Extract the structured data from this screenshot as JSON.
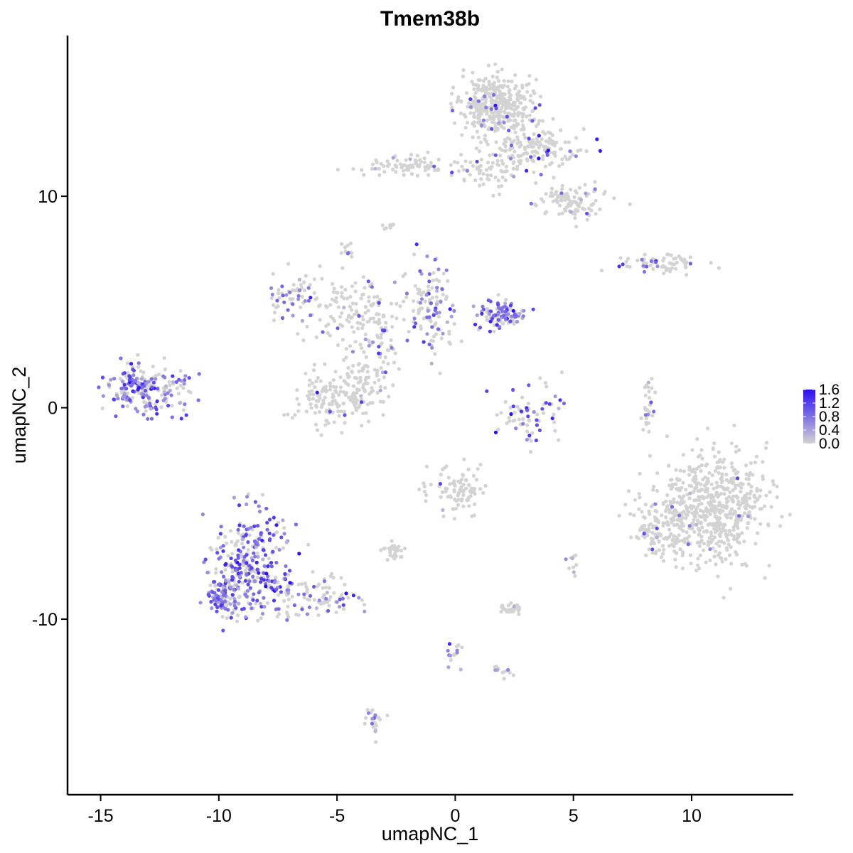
{
  "chart_data": {
    "type": "scatter",
    "title": "Tmem38b",
    "xlabel": "umapNC_1",
    "ylabel": "umapNC_2",
    "xlim": [
      -16.4,
      14.3
    ],
    "ylim": [
      -18.3,
      17.6
    ],
    "x_ticks": [
      -15,
      -10,
      -5,
      0,
      5,
      10
    ],
    "x_tick_labels": [
      "-15",
      "-10",
      "-5",
      "0",
      "5",
      "10"
    ],
    "y_ticks": [
      -10,
      0,
      10
    ],
    "y_tick_labels": [
      "-10",
      "0",
      "10"
    ],
    "grid": false,
    "legend": {
      "position": "right",
      "range": [
        0,
        1.6
      ],
      "ticks": [
        0.0,
        0.4,
        0.8,
        1.2,
        1.6
      ],
      "tick_labels": [
        "0.0",
        "0.4",
        "0.8",
        "1.2",
        "1.6"
      ],
      "low_color": "#d3d3d3",
      "high_color": "#2b0ff2"
    },
    "clusters": [
      {
        "cx": 1.8,
        "cy": 14.3,
        "sx": 1.0,
        "sy": 0.9,
        "n": 380,
        "expr_prob": 0.05,
        "expr_mean": 0.8
      },
      {
        "cx": 3.6,
        "cy": 12.2,
        "sx": 1.2,
        "sy": 0.6,
        "n": 150,
        "expr_prob": 0.15,
        "expr_mean": 1.0
      },
      {
        "cx": 4.9,
        "cy": 9.8,
        "sx": 0.8,
        "sy": 0.5,
        "n": 110,
        "expr_prob": 0.04,
        "expr_mean": 0.7
      },
      {
        "cx": -1.6,
        "cy": 11.4,
        "sx": 1.5,
        "sy": 0.3,
        "n": 80,
        "expr_prob": 0.03,
        "expr_mean": 0.6
      },
      {
        "cx": 1.3,
        "cy": 11.1,
        "sx": 1.0,
        "sy": 0.5,
        "n": 60,
        "expr_prob": 0.03,
        "expr_mean": 0.6
      },
      {
        "cx": 8.8,
        "cy": 6.8,
        "sx": 1.2,
        "sy": 0.25,
        "n": 70,
        "expr_prob": 0.15,
        "expr_mean": 0.9
      },
      {
        "cx": -4.5,
        "cy": 4.6,
        "sx": 1.6,
        "sy": 1.0,
        "n": 140,
        "expr_prob": 0.1,
        "expr_mean": 0.7
      },
      {
        "cx": -6.9,
        "cy": 5.3,
        "sx": 0.6,
        "sy": 0.6,
        "n": 50,
        "expr_prob": 0.45,
        "expr_mean": 0.8
      },
      {
        "cx": -4.0,
        "cy": 0.8,
        "sx": 0.6,
        "sy": 0.9,
        "n": 90,
        "expr_prob": 0.08,
        "expr_mean": 0.7
      },
      {
        "cx": -5.6,
        "cy": 0.5,
        "sx": 0.9,
        "sy": 0.8,
        "n": 110,
        "expr_prob": 0.05,
        "expr_mean": 0.7
      },
      {
        "cx": -0.9,
        "cy": 4.7,
        "sx": 0.6,
        "sy": 1.2,
        "n": 120,
        "expr_prob": 0.4,
        "expr_mean": 0.8
      },
      {
        "cx": 1.9,
        "cy": 4.4,
        "sx": 0.6,
        "sy": 0.5,
        "n": 110,
        "expr_prob": 0.55,
        "expr_mean": 0.9
      },
      {
        "cx": -3.3,
        "cy": 2.8,
        "sx": 0.6,
        "sy": 1.0,
        "n": 50,
        "expr_prob": 0.2,
        "expr_mean": 0.7
      },
      {
        "cx": -13.1,
        "cy": 0.9,
        "sx": 1.0,
        "sy": 0.7,
        "n": 220,
        "expr_prob": 0.6,
        "expr_mean": 0.8
      },
      {
        "cx": 3.1,
        "cy": -0.3,
        "sx": 0.9,
        "sy": 0.9,
        "n": 70,
        "expr_prob": 0.35,
        "expr_mean": 1.0
      },
      {
        "cx": 8.2,
        "cy": 0.2,
        "sx": 0.2,
        "sy": 0.8,
        "n": 30,
        "expr_prob": 0.2,
        "expr_mean": 0.7
      },
      {
        "cx": 10.9,
        "cy": -4.7,
        "sx": 1.4,
        "sy": 1.6,
        "n": 600,
        "expr_prob": 0.02,
        "expr_mean": 0.8
      },
      {
        "cx": 8.8,
        "cy": -5.8,
        "sx": 0.8,
        "sy": 0.9,
        "n": 120,
        "expr_prob": 0.02,
        "expr_mean": 0.8
      },
      {
        "cx": 0.2,
        "cy": -3.9,
        "sx": 0.9,
        "sy": 0.7,
        "n": 90,
        "expr_prob": 0.04,
        "expr_mean": 0.7
      },
      {
        "cx": -8.6,
        "cy": -7.3,
        "sx": 1.0,
        "sy": 1.5,
        "n": 300,
        "expr_prob": 0.6,
        "expr_mean": 0.95
      },
      {
        "cx": -9.8,
        "cy": -8.9,
        "sx": 0.5,
        "sy": 0.6,
        "n": 110,
        "expr_prob": 0.6,
        "expr_mean": 0.8
      },
      {
        "cx": -6.0,
        "cy": -9.0,
        "sx": 1.4,
        "sy": 0.6,
        "n": 100,
        "expr_prob": 0.3,
        "expr_mean": 0.8
      },
      {
        "cx": -2.6,
        "cy": -6.8,
        "sx": 0.3,
        "sy": 0.2,
        "n": 30,
        "expr_prob": 0.03,
        "expr_mean": 0.5
      },
      {
        "cx": 2.3,
        "cy": -9.5,
        "sx": 0.4,
        "sy": 0.2,
        "n": 30,
        "expr_prob": 0.05,
        "expr_mean": 0.6
      },
      {
        "cx": 0.0,
        "cy": -11.7,
        "sx": 0.2,
        "sy": 0.4,
        "n": 15,
        "expr_prob": 0.4,
        "expr_mean": 0.9
      },
      {
        "cx": 2.1,
        "cy": -12.5,
        "sx": 0.3,
        "sy": 0.2,
        "n": 12,
        "expr_prob": 0.1,
        "expr_mean": 0.6
      },
      {
        "cx": -3.4,
        "cy": -14.8,
        "sx": 0.2,
        "sy": 0.5,
        "n": 25,
        "expr_prob": 0.3,
        "expr_mean": 0.7
      },
      {
        "cx": 5.0,
        "cy": -7.3,
        "sx": 0.15,
        "sy": 0.3,
        "n": 10,
        "expr_prob": 0.1,
        "expr_mean": 0.6
      },
      {
        "cx": -4.6,
        "cy": 7.4,
        "sx": 0.2,
        "sy": 0.2,
        "n": 10,
        "expr_prob": 0.3,
        "expr_mean": 0.7
      },
      {
        "cx": -2.8,
        "cy": 8.6,
        "sx": 0.2,
        "sy": 0.1,
        "n": 8,
        "expr_prob": 0.0,
        "expr_mean": 0.5
      }
    ]
  }
}
